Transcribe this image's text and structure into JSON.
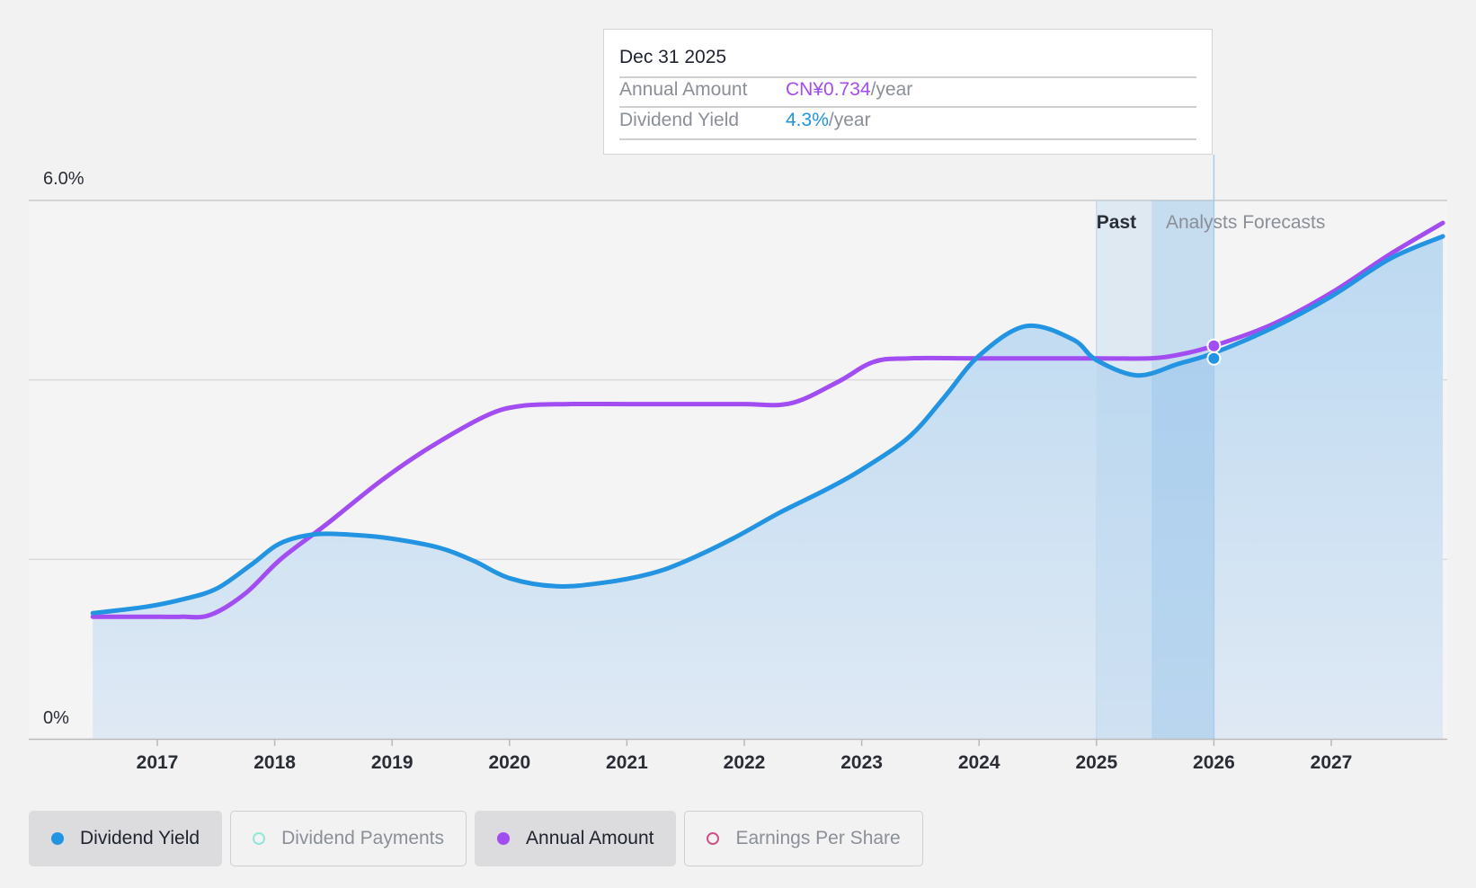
{
  "tooltip": {
    "date": "Dec 31 2025",
    "rows": [
      {
        "label": "Annual Amount",
        "value": "CN¥0.734",
        "suffix": "/year"
      },
      {
        "label": "Dividend Yield",
        "value": "4.3%",
        "suffix": "/year"
      }
    ]
  },
  "legend": [
    {
      "label": "Dividend Yield",
      "color": "#2394e2",
      "active": true,
      "marker": "filled"
    },
    {
      "label": "Dividend Payments",
      "color": "#8fe8d8",
      "active": false,
      "marker": "hollow"
    },
    {
      "label": "Annual Amount",
      "color": "#a24df2",
      "active": true,
      "marker": "filled"
    },
    {
      "label": "Earnings Per Share",
      "color": "#d0508a",
      "active": false,
      "marker": "hollow"
    }
  ],
  "colors": {
    "yield": "#2394e2",
    "annual": "#a24df2",
    "area": "#c5ddf0",
    "past_band": "#a9cdec",
    "forecast_band": "#8dbfe8"
  },
  "chart_data": {
    "type": "line",
    "title": "",
    "xlabel": "",
    "ylabel": "",
    "y_tick_labels": [
      "6.0%",
      "0%"
    ],
    "ylim": [
      0,
      6.0
    ],
    "xlim": [
      2016.35,
      2027.95
    ],
    "x_ticks": [
      2017,
      2018,
      2019,
      2020,
      2021,
      2022,
      2023,
      2024,
      2025,
      2026,
      2027
    ],
    "x_tick_labels": [
      "2017",
      "2018",
      "2019",
      "2020",
      "2021",
      "2022",
      "2023",
      "2024",
      "2025",
      "2026",
      "2027"
    ],
    "gridlines_y": [
      2.0,
      4.0,
      6.0
    ],
    "past_label": "Past",
    "forecast_label": "Analysts Forecasts",
    "past_range": [
      2025.0,
      2025.47
    ],
    "forecast_start": 2025.47,
    "highlight_x": 2026.0,
    "series": [
      {
        "name": "Dividend Yield",
        "points": [
          [
            2016.45,
            1.4
          ],
          [
            2016.9,
            1.47
          ],
          [
            2017.2,
            1.55
          ],
          [
            2017.5,
            1.67
          ],
          [
            2017.8,
            1.94
          ],
          [
            2018.05,
            2.18
          ],
          [
            2018.35,
            2.28
          ],
          [
            2018.7,
            2.27
          ],
          [
            2019.0,
            2.23
          ],
          [
            2019.4,
            2.13
          ],
          [
            2019.7,
            1.98
          ],
          [
            2020.0,
            1.79
          ],
          [
            2020.4,
            1.7
          ],
          [
            2020.8,
            1.74
          ],
          [
            2021.2,
            1.84
          ],
          [
            2021.5,
            1.98
          ],
          [
            2021.9,
            2.23
          ],
          [
            2022.3,
            2.52
          ],
          [
            2022.7,
            2.78
          ],
          [
            2023.0,
            3.0
          ],
          [
            2023.4,
            3.36
          ],
          [
            2023.7,
            3.8
          ],
          [
            2024.0,
            4.27
          ],
          [
            2024.4,
            4.6
          ],
          [
            2024.8,
            4.45
          ],
          [
            2025.0,
            4.22
          ],
          [
            2025.35,
            4.05
          ],
          [
            2025.7,
            4.18
          ],
          [
            2026.0,
            4.3
          ],
          [
            2026.5,
            4.58
          ],
          [
            2027.0,
            4.93
          ],
          [
            2027.5,
            5.35
          ],
          [
            2027.95,
            5.6
          ]
        ]
      },
      {
        "name": "Annual Amount",
        "points": [
          [
            2016.45,
            1.36
          ],
          [
            2016.9,
            1.36
          ],
          [
            2017.2,
            1.36
          ],
          [
            2017.45,
            1.38
          ],
          [
            2017.75,
            1.62
          ],
          [
            2018.05,
            2.0
          ],
          [
            2018.45,
            2.4
          ],
          [
            2018.9,
            2.87
          ],
          [
            2019.3,
            3.23
          ],
          [
            2019.8,
            3.6
          ],
          [
            2020.1,
            3.71
          ],
          [
            2020.5,
            3.73
          ],
          [
            2021.0,
            3.73
          ],
          [
            2021.5,
            3.73
          ],
          [
            2022.0,
            3.73
          ],
          [
            2022.4,
            3.74
          ],
          [
            2022.8,
            3.98
          ],
          [
            2023.1,
            4.2
          ],
          [
            2023.4,
            4.24
          ],
          [
            2024.0,
            4.24
          ],
          [
            2025.0,
            4.24
          ],
          [
            2025.45,
            4.24
          ],
          [
            2025.7,
            4.28
          ],
          [
            2026.0,
            4.38
          ],
          [
            2026.5,
            4.62
          ],
          [
            2027.0,
            4.97
          ],
          [
            2027.5,
            5.4
          ],
          [
            2027.95,
            5.75
          ]
        ]
      }
    ]
  }
}
